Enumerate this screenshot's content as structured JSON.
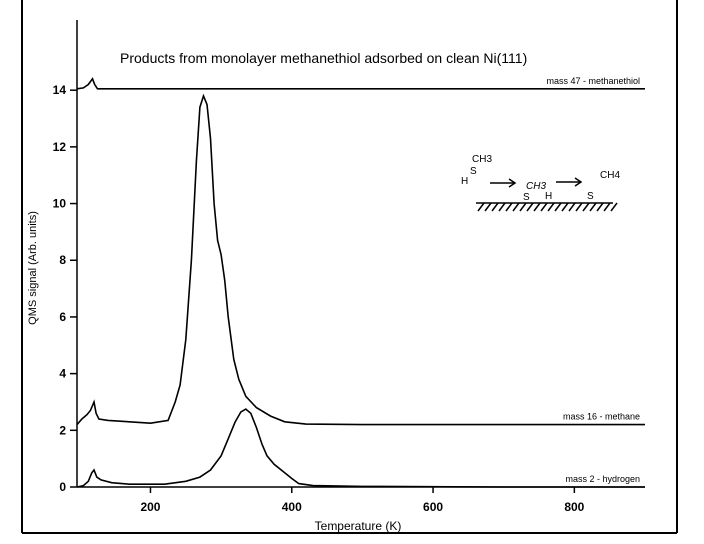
{
  "chart_data": {
    "type": "line",
    "title": "Products from monolayer methanethiol adsorbed on clean Ni(111)",
    "xlabel": "Temperature (K)",
    "ylabel": "QMS signal (Arb. units)",
    "xlim": [
      96,
      900
    ],
    "ylim": [
      0,
      15.7
    ],
    "xticks": [
      200,
      400,
      600,
      800
    ],
    "yticks": [
      0,
      2,
      4,
      6,
      8,
      10,
      12,
      14
    ],
    "grid": false,
    "series": [
      {
        "name": "mass 47 - methanethiol",
        "x": [
          96,
          105,
          112,
          118,
          121,
          125,
          130,
          200,
          400,
          600,
          900
        ],
        "y": [
          14.05,
          14.08,
          14.2,
          14.4,
          14.2,
          14.05,
          14.05,
          14.05,
          14.05,
          14.05,
          14.05
        ]
      },
      {
        "name": "mass 16 - methane",
        "x": [
          96,
          103,
          110,
          115,
          120,
          123,
          127,
          140,
          170,
          200,
          225,
          235,
          242,
          250,
          258,
          265,
          270,
          275,
          280,
          285,
          290,
          295,
          300,
          305,
          310,
          318,
          325,
          335,
          350,
          370,
          390,
          420,
          500,
          700,
          900
        ],
        "y": [
          2.2,
          2.4,
          2.55,
          2.7,
          3.0,
          2.6,
          2.4,
          2.35,
          2.3,
          2.25,
          2.35,
          3.0,
          3.6,
          5.2,
          8.0,
          11.5,
          13.4,
          13.8,
          13.5,
          12.3,
          10.0,
          8.7,
          8.2,
          7.3,
          6.0,
          4.5,
          3.8,
          3.2,
          2.8,
          2.5,
          2.3,
          2.22,
          2.2,
          2.2,
          2.2
        ]
      },
      {
        "name": "mass 2 - hydrogen",
        "x": [
          96,
          105,
          112,
          117,
          120,
          124,
          130,
          145,
          170,
          220,
          250,
          270,
          285,
          300,
          310,
          320,
          328,
          335,
          342,
          350,
          358,
          365,
          375,
          390,
          400,
          410,
          430,
          500,
          700,
          900
        ],
        "y": [
          0,
          0.05,
          0.2,
          0.5,
          0.6,
          0.35,
          0.25,
          0.15,
          0.1,
          0.1,
          0.2,
          0.35,
          0.6,
          1.1,
          1.7,
          2.3,
          2.65,
          2.75,
          2.6,
          2.1,
          1.5,
          1.1,
          0.8,
          0.5,
          0.3,
          0.12,
          0.05,
          0.02,
          0,
          0
        ]
      }
    ],
    "series_labels": [
      "mass 47 - methanethiol",
      "mass 16 - methane",
      "mass 2 - hydrogen"
    ],
    "inset_diagram": {
      "reactant_h": "H",
      "reactant_s": "S",
      "reactant_ch3": "CH3",
      "intermediate_ch3": "CH3",
      "intermediate_s": "S",
      "intermediate_h": "H",
      "product_ch4": "CH4",
      "product_s": "S"
    }
  }
}
